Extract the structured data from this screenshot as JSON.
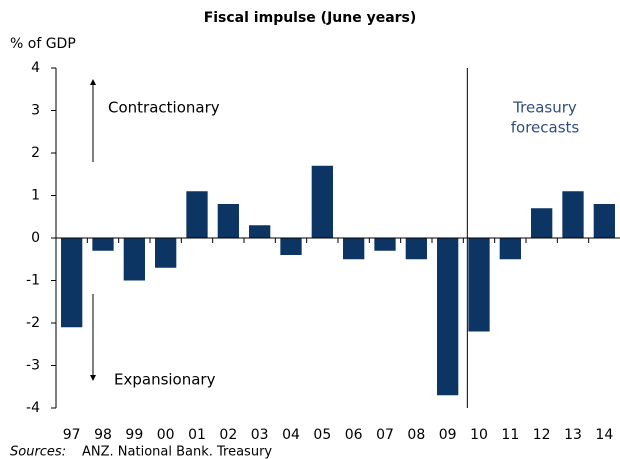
{
  "chart_data": {
    "type": "bar",
    "title": "Fiscal impulse (June years)",
    "y_label": "% of GDP",
    "categories": [
      "97",
      "98",
      "99",
      "00",
      "01",
      "02",
      "03",
      "04",
      "05",
      "06",
      "07",
      "08",
      "09",
      "10",
      "11",
      "12",
      "13",
      "14"
    ],
    "values": [
      -2.1,
      -0.3,
      -1.0,
      -0.7,
      1.1,
      0.8,
      0.3,
      -0.4,
      1.7,
      -0.5,
      -0.3,
      -0.5,
      -3.7,
      -2.2,
      -0.5,
      0.7,
      1.1,
      0.8
    ],
    "color": "#0d3563",
    "ylim": [
      -4,
      4
    ],
    "yticks": [
      -4,
      -3,
      -2,
      -1,
      0,
      1,
      2,
      3,
      4
    ],
    "annotations": {
      "contractionary": "Contractionary",
      "expansionary": "Expansionary",
      "forecast_line1": "Treasury",
      "forecast_line2": "forecasts"
    },
    "source_label": "Sources:",
    "source": "ANZ. National Bank. Treasury"
  }
}
